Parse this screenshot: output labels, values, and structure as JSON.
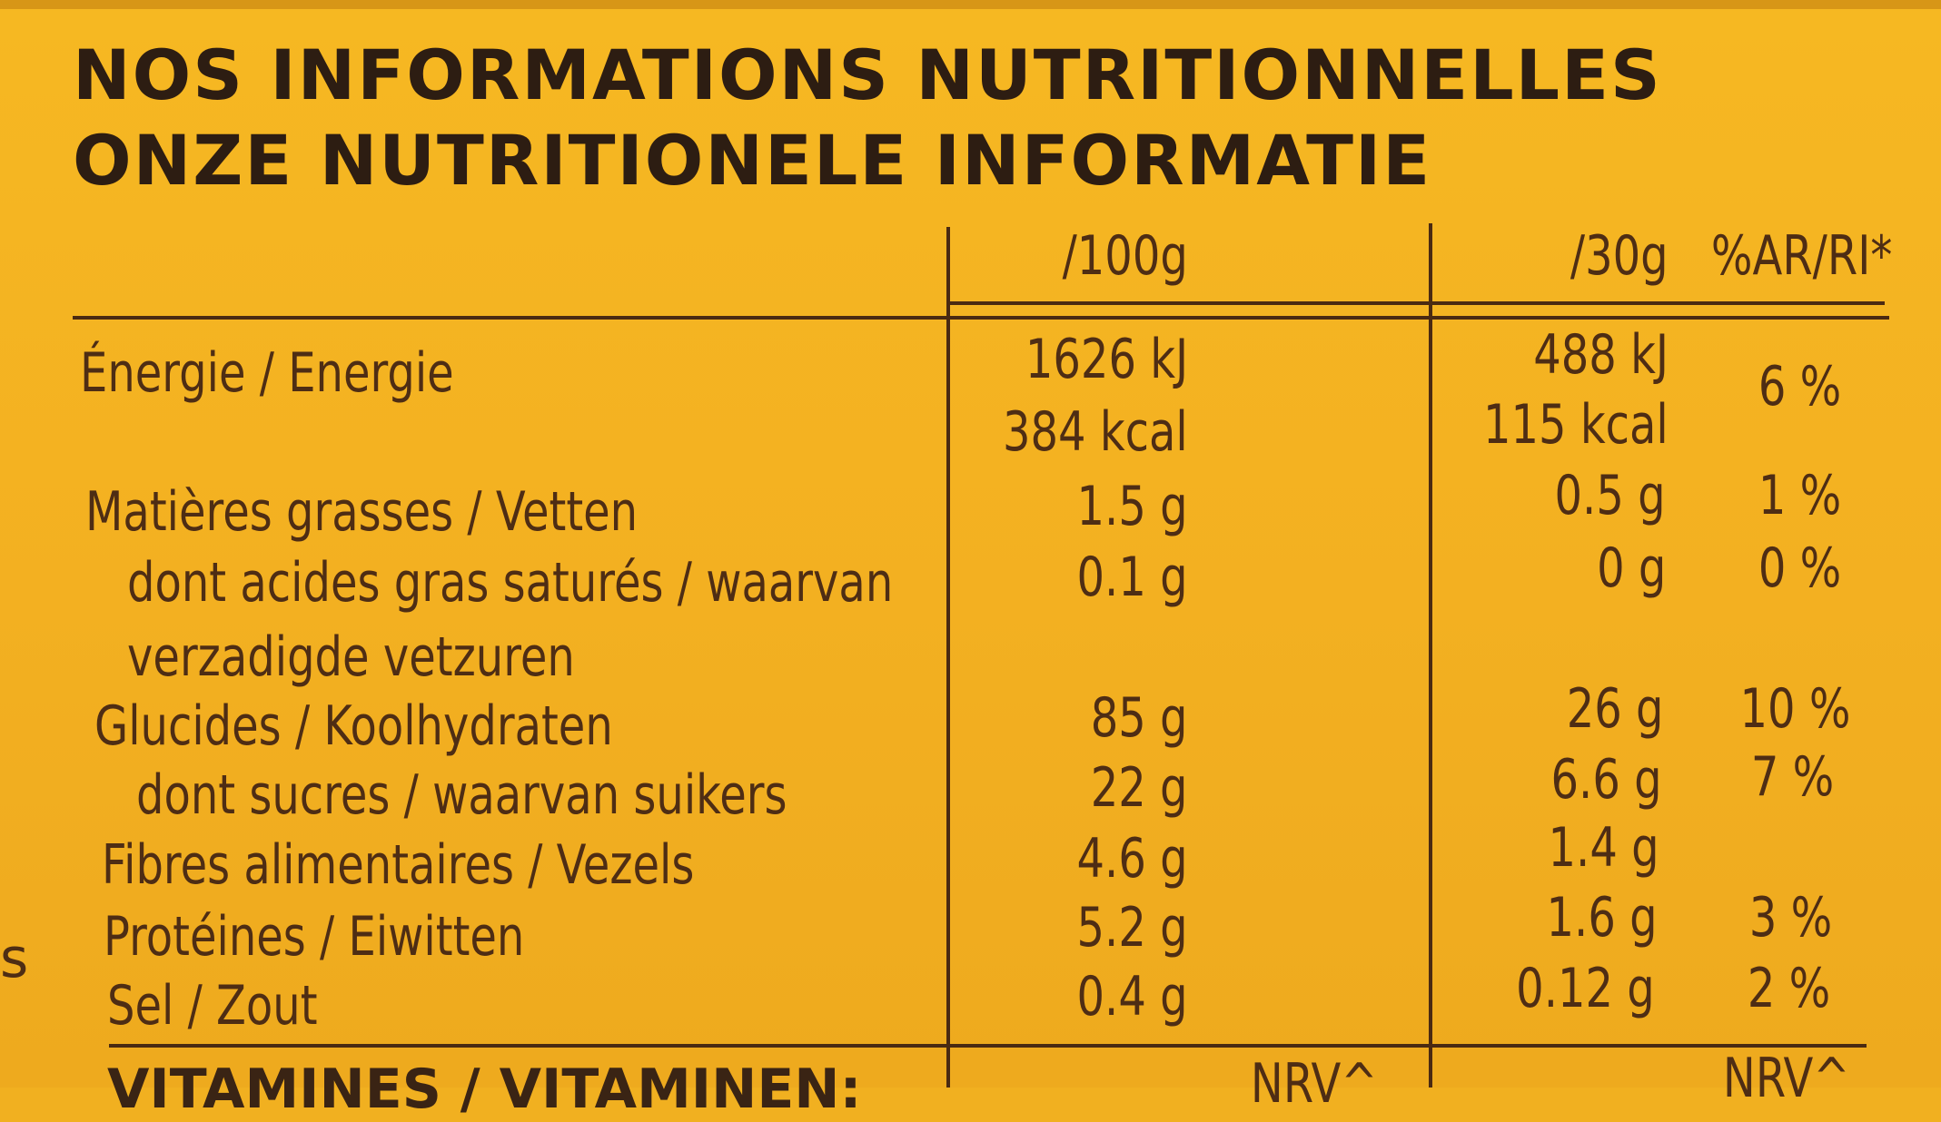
{
  "title": {
    "line1": "NOS INFORMATIONS NUTRITIONNELLES",
    "line2": "ONZE NUTRITIONELE INFORMATIE"
  },
  "header": {
    "per100": "/100g",
    "per30": "/30g",
    "ri": "%AR/RI*"
  },
  "rows": [
    {
      "label": "Énergie / Energie",
      "v100": "1626 kJ",
      "v30": "488 kJ",
      "ri": "6 %"
    },
    {
      "label": "",
      "v100": "384 kcal",
      "v30": "115 kcal",
      "ri": ""
    },
    {
      "label": "Matières grasses / Vetten",
      "v100": "1.5 g",
      "v30": "0.5 g",
      "ri": "1 %"
    },
    {
      "label": "dont acides gras saturés / waarvan",
      "v100": "0.1 g",
      "v30": "0 g",
      "ri": "0 %"
    },
    {
      "label": "verzadigde vetzuren",
      "v100": "",
      "v30": "",
      "ri": ""
    },
    {
      "label": "Glucides / Koolhydraten",
      "v100": "85 g",
      "v30": "26 g",
      "ri": "10 %"
    },
    {
      "label": "dont sucres / waarvan suikers",
      "v100": "22 g",
      "v30": "6.6 g",
      "ri": "7 %"
    },
    {
      "label": "Fibres alimentaires / Vezels",
      "v100": "4.6 g",
      "v30": "1.4 g",
      "ri": ""
    },
    {
      "label": "Protéines / Eiwitten",
      "v100": "5.2 g",
      "v30": "1.6 g",
      "ri": "3 %"
    },
    {
      "label": "Sel / Zout",
      "v100": "0.4 g",
      "v30": "0.12 g",
      "ri": "2 %"
    }
  ],
  "footer": {
    "vitamins": "VITAMINES / VITAMINEN:",
    "nrv1": "NRV^",
    "nrv2": "NRV^"
  },
  "side_letter": "s"
}
